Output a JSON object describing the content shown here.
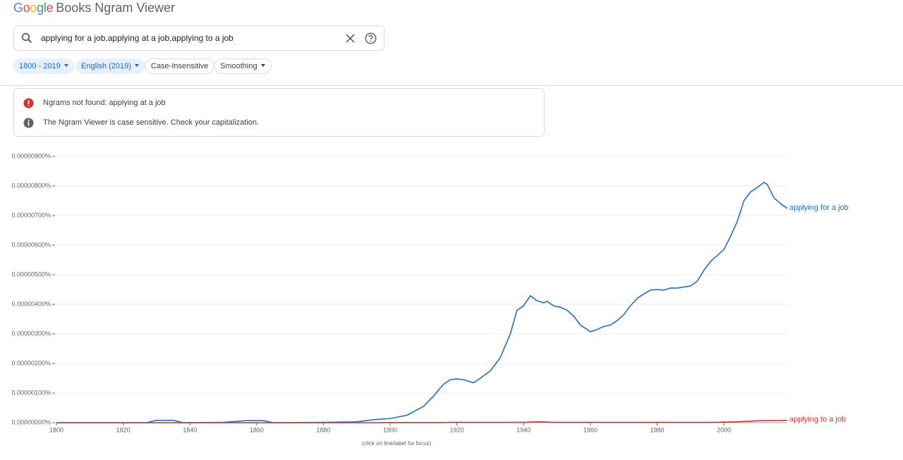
{
  "header": {
    "logo": "Google",
    "title": "Books Ngram Viewer"
  },
  "search": {
    "query": "applying for a job,applying at a job,applying to a job"
  },
  "filters": [
    "1800 - 2019",
    "English (2019)",
    "Case-Insensitive",
    "Smoothing"
  ],
  "messages": [
    "Ngrams not found: applying at a job",
    "The Ngram Viewer is case sensitive. Check your capitalization."
  ],
  "chart_data": {
    "type": "line",
    "note": "(click on line/label for focus)",
    "grid": true,
    "xlim": [
      1800,
      2019
    ],
    "xticks": [
      1800,
      1820,
      1840,
      1860,
      1880,
      1900,
      1920,
      1940,
      1960,
      1980,
      2000
    ],
    "ylim": [
      0,
      9e-06
    ],
    "yticks": [
      {
        "value": 0,
        "label": "0.00000000%"
      },
      {
        "value": 1e-06,
        "label": "0.00000100%"
      },
      {
        "value": 2e-06,
        "label": "0.00000200%"
      },
      {
        "value": 3e-06,
        "label": "0.00000300%"
      },
      {
        "value": 4e-06,
        "label": "0.00000400%"
      },
      {
        "value": 5e-06,
        "label": "0.00000500%"
      },
      {
        "value": 6e-06,
        "label": "0.00000600%"
      },
      {
        "value": 7e-06,
        "label": "0.00000700%"
      },
      {
        "value": 8e-06,
        "label": "0.00000800%"
      },
      {
        "value": 9e-06,
        "label": "0.00000900%"
      }
    ],
    "x": [
      1800,
      1820,
      1827,
      1830,
      1835,
      1838,
      1850,
      1857,
      1862,
      1865,
      1880,
      1890,
      1895,
      1900,
      1905,
      1910,
      1913,
      1916,
      1918,
      1920,
      1922,
      1925,
      1927,
      1930,
      1933,
      1936,
      1938,
      1940,
      1942,
      1944,
      1946,
      1947,
      1949,
      1951,
      1953,
      1955,
      1957,
      1959,
      1960,
      1962,
      1964,
      1966,
      1968,
      1970,
      1972,
      1974,
      1976,
      1978,
      1980,
      1982,
      1984,
      1986,
      1990,
      1992,
      1994,
      1996,
      1998,
      2000,
      2002,
      2004,
      2006,
      2008,
      2010,
      2012,
      2013,
      2015,
      2017,
      2019
    ],
    "series": [
      {
        "name": "applying for a job",
        "color": "#1f6fc5",
        "values": [
          0,
          0,
          0,
          8e-08,
          8e-08,
          0,
          1e-08,
          7e-08,
          7e-08,
          0,
          1e-08,
          3e-08,
          1e-07,
          1.4e-07,
          2.5e-07,
          5.5e-07,
          9e-07,
          1.3e-06,
          1.45e-06,
          1.48e-06,
          1.45e-06,
          1.35e-06,
          1.5e-06,
          1.75e-06,
          2.2e-06,
          3e-06,
          3.8e-06,
          3.95e-06,
          4.29e-06,
          4.12e-06,
          4.05e-06,
          4.1e-06,
          3.95e-06,
          3.9e-06,
          3.8e-06,
          3.6e-06,
          3.3e-06,
          3.15e-06,
          3.07e-06,
          3.15e-06,
          3.25e-06,
          3.3e-06,
          3.45e-06,
          3.65e-06,
          3.95e-06,
          4.2e-06,
          4.35e-06,
          4.48e-06,
          4.5e-06,
          4.48e-06,
          4.55e-06,
          4.55e-06,
          4.62e-06,
          4.78e-06,
          5.15e-06,
          5.45e-06,
          5.65e-06,
          5.85e-06,
          6.3e-06,
          6.8e-06,
          7.5e-06,
          7.8e-06,
          7.95e-06,
          8.12e-06,
          8.05e-06,
          7.6e-06,
          7.4e-06,
          7.24e-06
        ]
      },
      {
        "name": "applying to a job",
        "color": "#d62f2f",
        "values": [
          0,
          0,
          0,
          0,
          0,
          0,
          0,
          0,
          0,
          0,
          0,
          0,
          0,
          5e-09,
          5e-09,
          5e-09,
          5e-09,
          5e-09,
          1e-08,
          1e-08,
          1e-08,
          1e-08,
          1e-08,
          1e-08,
          1e-08,
          1e-08,
          1e-08,
          1e-08,
          2e-08,
          3e-08,
          2.5e-08,
          2e-08,
          1e-08,
          1e-08,
          1e-08,
          1e-08,
          1e-08,
          1e-08,
          1e-08,
          1e-08,
          1e-08,
          1e-08,
          1e-08,
          1e-08,
          1e-08,
          1e-08,
          1e-08,
          1e-08,
          1e-08,
          1e-08,
          1e-08,
          1e-08,
          1e-08,
          1e-08,
          1e-08,
          1e-08,
          1.5e-08,
          2e-08,
          2.5e-08,
          3e-08,
          4e-08,
          5e-08,
          6e-08,
          7e-08,
          7e-08,
          7e-08,
          7e-08,
          8e-08
        ]
      }
    ]
  }
}
